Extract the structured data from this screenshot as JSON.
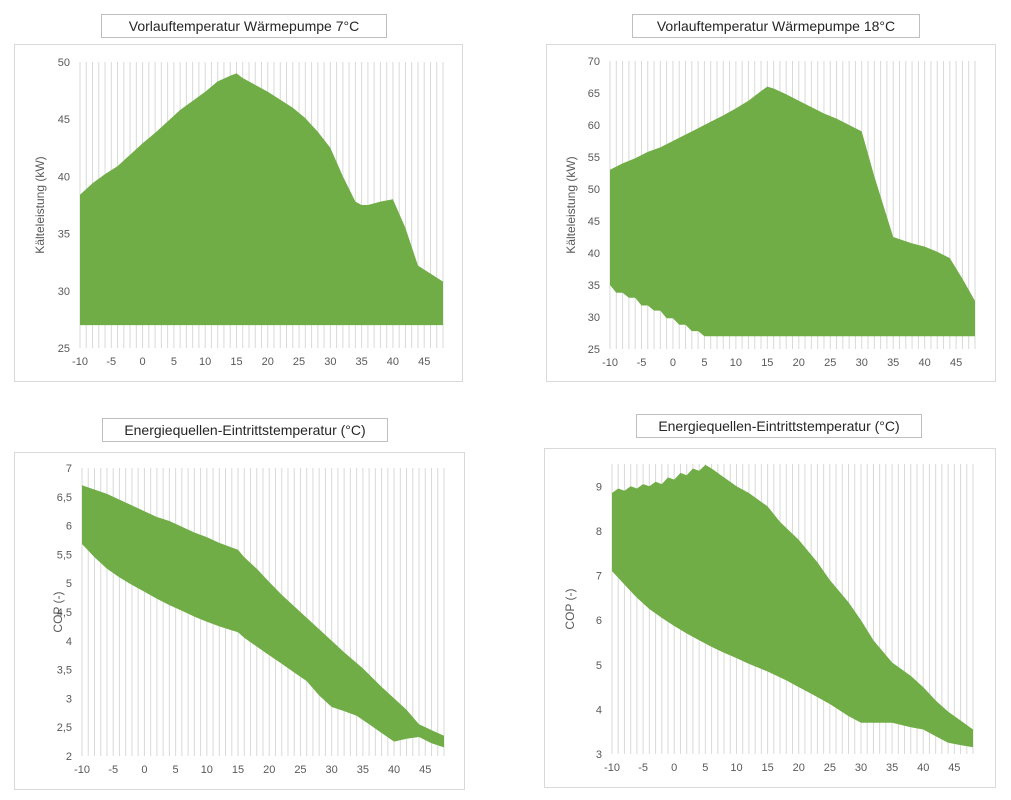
{
  "chart_data": [
    {
      "type": "area",
      "title": "Vorlauftemperatur Wärmepumpe 7°C",
      "xlabel": "",
      "ylabel": "Kälteleistung (kW)",
      "xlim": [
        -10,
        48
      ],
      "ylim": [
        25,
        50
      ],
      "xticks": [
        "-10",
        "-5",
        "0",
        "5",
        "10",
        "15",
        "20",
        "25",
        "30",
        "35",
        "40",
        "45"
      ],
      "yticks": [
        "25",
        "30",
        "35",
        "40",
        "45",
        "50"
      ],
      "fill_color": "#70ad47",
      "grid": "vertical",
      "series": [
        {
          "name": "upper",
          "x": [
            -10,
            -8,
            -6,
            -4,
            -2,
            0,
            2,
            4,
            6,
            8,
            10,
            12,
            14,
            15,
            16,
            18,
            20,
            22,
            24,
            26,
            28,
            30,
            32,
            34,
            35,
            36,
            38,
            40,
            42,
            44,
            46,
            48
          ],
          "values": [
            38.4,
            39.4,
            40.2,
            40.9,
            41.9,
            42.9,
            43.8,
            44.8,
            45.8,
            46.6,
            47.4,
            48.3,
            48.8,
            49.0,
            48.6,
            48.0,
            47.4,
            46.7,
            46.0,
            45.1,
            43.9,
            42.5,
            40.0,
            37.8,
            37.5,
            37.5,
            37.8,
            38.0,
            35.5,
            32.2,
            31.5,
            30.8
          ]
        },
        {
          "name": "lower",
          "x": [
            -10,
            48
          ],
          "values": [
            27.0,
            27.0
          ]
        }
      ]
    },
    {
      "type": "area",
      "title": "Vorlauftemperatur Wärmepumpe 18°C",
      "xlabel": "",
      "ylabel": "Kälteleistung (kW)",
      "xlim": [
        -10,
        48
      ],
      "ylim": [
        25,
        70
      ],
      "xticks": [
        "-10",
        "-5",
        "0",
        "5",
        "10",
        "15",
        "20",
        "25",
        "30",
        "35",
        "40",
        "45"
      ],
      "yticks": [
        "25",
        "30",
        "35",
        "40",
        "45",
        "50",
        "55",
        "60",
        "65",
        "70"
      ],
      "fill_color": "#70ad47",
      "grid": "vertical",
      "series": [
        {
          "name": "upper",
          "x": [
            -10,
            -8,
            -6,
            -4,
            -2,
            0,
            2,
            4,
            6,
            8,
            10,
            12,
            14,
            15,
            16,
            18,
            20,
            22,
            24,
            26,
            28,
            30,
            32,
            35,
            38,
            40,
            42,
            44,
            46,
            48
          ],
          "values": [
            53.0,
            54.0,
            54.8,
            55.8,
            56.5,
            57.5,
            58.5,
            59.5,
            60.5,
            61.5,
            62.6,
            63.8,
            65.3,
            66.0,
            65.7,
            64.8,
            63.8,
            62.8,
            61.8,
            61.0,
            60.0,
            59.0,
            52.0,
            42.5,
            41.5,
            41.0,
            40.2,
            39.2,
            36.0,
            32.5
          ]
        },
        {
          "name": "lower",
          "x": [
            -10,
            -9,
            -8,
            -7,
            -6,
            -5,
            -4,
            -3,
            -2,
            -1,
            0,
            1,
            2,
            3,
            4,
            5,
            48
          ],
          "values": [
            35.0,
            33.8,
            33.8,
            33.0,
            33.0,
            31.8,
            31.8,
            31.0,
            31.0,
            29.8,
            29.8,
            28.8,
            28.8,
            27.8,
            27.8,
            27.0,
            27.0
          ]
        }
      ]
    },
    {
      "type": "area",
      "title": "Energiequellen-Eintrittstemperatur (°C)",
      "xlabel": "",
      "ylabel": "COP (-)",
      "xlim": [
        -10,
        48
      ],
      "ylim": [
        2,
        7
      ],
      "xticks": [
        "-10",
        "-5",
        "0",
        "5",
        "10",
        "15",
        "20",
        "25",
        "30",
        "35",
        "40",
        "45"
      ],
      "yticks": [
        "2",
        "2,5",
        "3",
        "3,5",
        "4",
        "4,5",
        "5",
        "5,5",
        "6",
        "6,5",
        "7"
      ],
      "fill_color": "#70ad47",
      "grid": "vertical",
      "series": [
        {
          "name": "upper",
          "x": [
            -10,
            -6,
            -2,
            0,
            2,
            4,
            6,
            8,
            10,
            12,
            14,
            15,
            16,
            18,
            20,
            22,
            25,
            28,
            30,
            32,
            35,
            38,
            40,
            42,
            44,
            46,
            48
          ],
          "values": [
            6.7,
            6.55,
            6.35,
            6.25,
            6.15,
            6.08,
            5.98,
            5.88,
            5.8,
            5.7,
            5.62,
            5.58,
            5.45,
            5.25,
            5.02,
            4.8,
            4.5,
            4.2,
            4.0,
            3.8,
            3.52,
            3.2,
            3.0,
            2.8,
            2.55,
            2.45,
            2.35
          ]
        },
        {
          "name": "lower",
          "x": [
            -10,
            -8,
            -6,
            -4,
            -2,
            0,
            2,
            4,
            6,
            8,
            10,
            12,
            14,
            15,
            16,
            18,
            20,
            22,
            24,
            26,
            28,
            30,
            32,
            34,
            36,
            38,
            40,
            42,
            44,
            46,
            48
          ],
          "values": [
            5.68,
            5.45,
            5.25,
            5.1,
            4.97,
            4.85,
            4.73,
            4.62,
            4.52,
            4.42,
            4.33,
            4.25,
            4.18,
            4.15,
            4.05,
            3.9,
            3.75,
            3.6,
            3.45,
            3.3,
            3.05,
            2.85,
            2.78,
            2.7,
            2.55,
            2.4,
            2.25,
            2.3,
            2.33,
            2.22,
            2.15
          ]
        }
      ]
    },
    {
      "type": "area",
      "title": "Energiequellen-Eintrittstemperatur (°C)",
      "xlabel": "",
      "ylabel": "COP (-)",
      "xlim": [
        -10,
        48
      ],
      "ylim": [
        3,
        9.5
      ],
      "xticks": [
        "-10",
        "-5",
        "0",
        "5",
        "10",
        "15",
        "20",
        "25",
        "30",
        "35",
        "40",
        "45"
      ],
      "yticks": [
        "3",
        "4",
        "5",
        "6",
        "7",
        "8",
        "9"
      ],
      "fill_color": "#70ad47",
      "grid": "vertical",
      "series": [
        {
          "name": "upper",
          "x": [
            -10,
            -9,
            -8,
            -7,
            -6,
            -5,
            -4,
            -3,
            -2,
            -1,
            0,
            1,
            2,
            3,
            4,
            5,
            6,
            8,
            10,
            12,
            15,
            17,
            20,
            23,
            25,
            28,
            30,
            32,
            35,
            38,
            40,
            42,
            44,
            46,
            48
          ],
          "values": [
            8.85,
            8.95,
            8.9,
            9.0,
            8.95,
            9.05,
            9.0,
            9.1,
            9.05,
            9.2,
            9.15,
            9.3,
            9.25,
            9.4,
            9.35,
            9.48,
            9.4,
            9.2,
            9.0,
            8.85,
            8.55,
            8.2,
            7.8,
            7.3,
            6.9,
            6.4,
            6.0,
            5.55,
            5.05,
            4.75,
            4.5,
            4.2,
            3.95,
            3.75,
            3.55
          ]
        },
        {
          "name": "lower",
          "x": [
            -10,
            -8,
            -6,
            -4,
            -2,
            0,
            2,
            4,
            6,
            8,
            10,
            12,
            15,
            18,
            20,
            22,
            25,
            28,
            30,
            32,
            35,
            38,
            40,
            42,
            44,
            46,
            48
          ],
          "values": [
            7.1,
            6.8,
            6.5,
            6.25,
            6.05,
            5.87,
            5.7,
            5.55,
            5.4,
            5.27,
            5.15,
            5.02,
            4.85,
            4.65,
            4.5,
            4.35,
            4.12,
            3.85,
            3.7,
            3.7,
            3.7,
            3.6,
            3.55,
            3.4,
            3.25,
            3.2,
            3.15
          ]
        }
      ]
    }
  ]
}
